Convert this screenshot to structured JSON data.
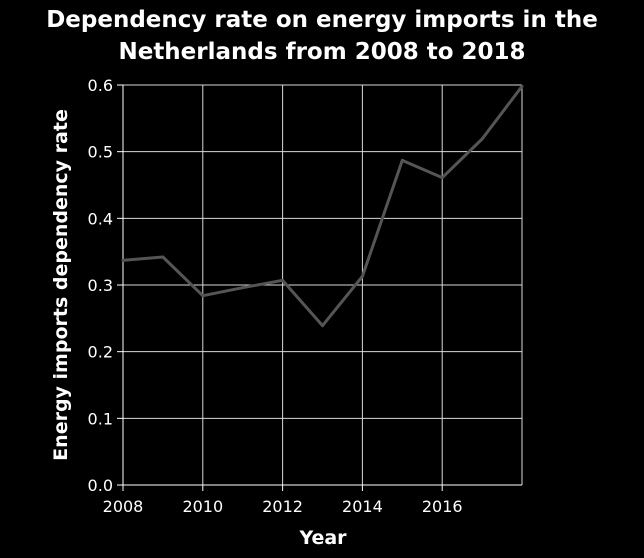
{
  "chart_data": {
    "type": "line",
    "title_lines": [
      "Dependency rate on energy imports in the",
      "Netherlands from 2008 to 2018"
    ],
    "xlabel": "Year",
    "ylabel": "Energy imports dependency rate",
    "x_ticks": [
      2008,
      2010,
      2012,
      2014,
      2016
    ],
    "y_ticks": [
      "0.0",
      "0.1",
      "0.2",
      "0.3",
      "0.4",
      "0.5",
      "0.6"
    ],
    "xlim": [
      2008,
      2018
    ],
    "ylim": [
      0,
      0.6
    ],
    "grid": true,
    "series": [
      {
        "x": [
          2008,
          2009,
          2010,
          2011,
          2012,
          2013,
          2014,
          2015,
          2016,
          2017,
          2018
        ],
        "values": [
          0.337,
          0.342,
          0.284,
          0.296,
          0.307,
          0.239,
          0.313,
          0.487,
          0.461,
          0.519,
          0.598
        ],
        "color": "#555555"
      }
    ]
  }
}
